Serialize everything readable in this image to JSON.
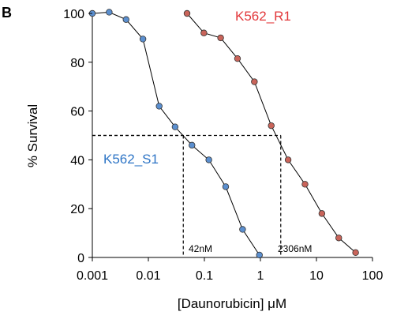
{
  "panel_label": "B",
  "chart_data": {
    "type": "scatter",
    "xlabel": "[Daunorubicin] μM",
    "ylabel": "% Survival",
    "x_scale": "log",
    "xlim": [
      0.001,
      100
    ],
    "ylim": [
      0,
      100
    ],
    "x_ticks": [
      0.001,
      0.01,
      0.1,
      1,
      10,
      100
    ],
    "x_tick_labels": [
      "0.001",
      "0.01",
      "0.1",
      "1",
      "10",
      "100"
    ],
    "y_ticks": [
      0,
      20,
      40,
      60,
      80,
      100
    ],
    "y_tick_labels": [
      "0",
      "20",
      "40",
      "60",
      "80",
      "100"
    ],
    "grid": false,
    "series": [
      {
        "name": "K562_S1",
        "color": "#2e75c6",
        "marker_fill": "#5b8fcf",
        "x": [
          0.001,
          0.002,
          0.004,
          0.008,
          0.0156,
          0.03,
          0.06,
          0.12,
          0.24,
          0.48,
          0.96
        ],
        "y": [
          100,
          100.5,
          97.5,
          89.5,
          62,
          53.5,
          46,
          40,
          29,
          11.5,
          1
        ]
      },
      {
        "name": "K562_R1",
        "color": "#e2373a",
        "marker_fill": "#c9645a",
        "x": [
          0.049,
          0.098,
          0.195,
          0.39,
          0.78,
          1.56,
          3.12,
          6.25,
          12.5,
          25,
          50
        ],
        "y": [
          100,
          92,
          90,
          81.5,
          72,
          54,
          40,
          30,
          18,
          8,
          2
        ]
      }
    ],
    "ic50_lines": [
      {
        "y": 50,
        "x": 0.042,
        "label": "42nM"
      },
      {
        "y": 50,
        "x": 2.306,
        "label": "2306nM"
      }
    ]
  }
}
